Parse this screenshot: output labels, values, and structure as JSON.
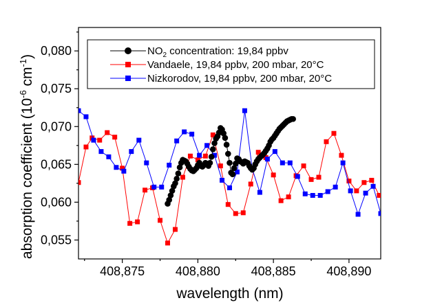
{
  "chart_data": {
    "type": "line",
    "xlabel": "wavelength (nm)",
    "ylabel_main": "absorption coefficient (10",
    "ylabel_exp1": "-6",
    "ylabel_mid": " cm",
    "ylabel_exp2": "-1",
    "ylabel_close": ")",
    "xlim": [
      408.8721,
      408.8921
    ],
    "ylim": [
      0.0525,
      0.0831
    ],
    "xticks": [
      {
        "value": 408.875,
        "label": "408,875"
      },
      {
        "value": 408.88,
        "label": "408,880"
      },
      {
        "value": 408.885,
        "label": "408,885"
      },
      {
        "value": 408.89,
        "label": "408,890"
      }
    ],
    "yticks": [
      {
        "value": 0.055,
        "label": "0,055"
      },
      {
        "value": 0.06,
        "label": "0,060"
      },
      {
        "value": 0.065,
        "label": "0,065"
      },
      {
        "value": 0.07,
        "label": "0,070"
      },
      {
        "value": 0.075,
        "label": "0,075"
      },
      {
        "value": 0.08,
        "label": "0,080"
      }
    ],
    "grid": false,
    "legend_position": "top-right",
    "series": [
      {
        "legend_pre": "NO",
        "legend_sub": "2",
        "legend_post": " concentration: 19,84 ppbv",
        "color": "#000000",
        "marker": "circle",
        "x": [
          408.878,
          408.8781,
          408.8782,
          408.8783,
          408.8784,
          408.8785,
          408.8786,
          408.8787,
          408.8788,
          408.8789,
          408.879,
          408.8791,
          408.8792,
          408.8793,
          408.8794,
          408.8795,
          408.8796,
          408.8797,
          408.8798,
          408.8799,
          408.88,
          408.8801,
          408.8802,
          408.8803,
          408.8804,
          408.8805,
          408.8806,
          408.8807,
          408.8808,
          408.8809,
          408.881,
          408.8811,
          408.8812,
          408.8813,
          408.8814,
          408.8815,
          408.8816,
          408.8817,
          408.8818,
          408.8819,
          408.882,
          408.8821,
          408.8822,
          408.8823,
          408.8824,
          408.8825,
          408.8826,
          408.8827,
          408.8828,
          408.8829,
          408.883,
          408.8831,
          408.8832,
          408.8833,
          408.8834,
          408.8835,
          408.8836,
          408.8837,
          408.8838,
          408.8839,
          408.884,
          408.8841,
          408.8842,
          408.8843,
          408.8844,
          408.8845,
          408.8846,
          408.8847,
          408.8848,
          408.8849,
          408.885,
          408.8851,
          408.8852,
          408.8853,
          408.8854,
          408.8855,
          408.8856,
          408.8857,
          408.8858,
          408.8859,
          408.886,
          408.8861,
          408.8862,
          408.8863
        ],
        "y": [
          0.0598,
          0.0603,
          0.0609,
          0.0615,
          0.0621,
          0.0625,
          0.0631,
          0.0638,
          0.0646,
          0.0652,
          0.0656,
          0.0655,
          0.0654,
          0.0651,
          0.0647,
          0.0644,
          0.0642,
          0.0641,
          0.0643,
          0.0645,
          0.0649,
          0.0652,
          0.0648,
          0.0647,
          0.0649,
          0.0652,
          0.065,
          0.0648,
          0.0652,
          0.066,
          0.067,
          0.0678,
          0.0684,
          0.0687,
          0.0692,
          0.0698,
          0.0696,
          0.0691,
          0.0685,
          0.0676,
          0.0664,
          0.0652,
          0.0639,
          0.0637,
          0.0645,
          0.0651,
          0.0658,
          0.0657,
          0.0654,
          0.0653,
          0.0651,
          0.0654,
          0.0653,
          0.0652,
          0.0648,
          0.0645,
          0.0643,
          0.0645,
          0.065,
          0.0654,
          0.0657,
          0.0659,
          0.0661,
          0.0663,
          0.0665,
          0.0668,
          0.0671,
          0.0675,
          0.068,
          0.0683,
          0.0685,
          0.0688,
          0.0691,
          0.0694,
          0.0697,
          0.0699,
          0.0701,
          0.0703,
          0.0705,
          0.0707,
          0.0708,
          0.0709,
          0.071,
          0.071
        ]
      },
      {
        "legend_text": "Vandaele, 19,84 ppbv, 200 mbar, 20°C",
        "color": "#ff0000",
        "marker": "square",
        "x": [
          408.8721,
          408.8726,
          408.873,
          408.8735,
          408.874,
          408.8745,
          408.875,
          408.8755,
          408.876,
          408.8765,
          408.877,
          408.8775,
          408.878,
          408.8785,
          408.879,
          408.8795,
          408.88,
          408.8805,
          408.881,
          408.8815,
          408.882,
          408.8825,
          408.883,
          408.8835,
          408.884,
          408.8845,
          408.885,
          408.8855,
          408.886,
          408.8865,
          408.887,
          408.8875,
          408.888,
          408.8885,
          408.889,
          408.8895,
          408.89,
          408.8905,
          408.891,
          408.8915,
          408.892
        ],
        "y": [
          0.0626,
          0.0673,
          0.0685,
          0.0682,
          0.0692,
          0.0686,
          0.0645,
          0.0572,
          0.0574,
          0.0616,
          0.0619,
          0.0576,
          0.0546,
          0.0564,
          0.0633,
          0.0661,
          0.0656,
          0.0661,
          0.0689,
          0.0648,
          0.0597,
          0.0585,
          0.0586,
          0.0624,
          0.0666,
          0.0659,
          0.0636,
          0.0602,
          0.0607,
          0.0635,
          0.0648,
          0.063,
          0.0633,
          0.068,
          0.0691,
          0.0662,
          0.0628,
          0.0615,
          0.0626,
          0.0629,
          0.0609
        ]
      },
      {
        "legend_text": "Nizkorodov, 19,84 ppbv, 200 mbar, 20°C",
        "color": "#0000ff",
        "marker": "square",
        "x": [
          408.8721,
          408.8726,
          408.8731,
          408.8736,
          408.8741,
          408.8746,
          408.8751,
          408.8756,
          408.8761,
          408.8766,
          408.8771,
          408.8776,
          408.8781,
          408.8786,
          408.8791,
          408.8796,
          408.8801,
          408.8806,
          408.8811,
          408.8816,
          408.8821,
          408.8826,
          408.8831,
          408.8836,
          408.8841,
          408.8846,
          408.8851,
          408.8856,
          408.8861,
          408.8866,
          408.8871,
          408.8876,
          408.8881,
          408.8886,
          408.8891,
          408.8896,
          408.8901,
          408.8906,
          408.8911,
          408.8916,
          408.8921
        ],
        "y": [
          0.0721,
          0.0713,
          0.0682,
          0.0667,
          0.066,
          0.0646,
          0.0641,
          0.0667,
          0.0682,
          0.0652,
          0.062,
          0.062,
          0.0649,
          0.0681,
          0.0693,
          0.069,
          0.0662,
          0.0675,
          0.0662,
          0.0629,
          0.0619,
          0.064,
          0.0721,
          0.0644,
          0.0613,
          0.0657,
          0.0667,
          0.0652,
          0.0652,
          0.0634,
          0.0611,
          0.0609,
          0.0609,
          0.0614,
          0.062,
          0.0652,
          0.0615,
          0.0584,
          0.0612,
          0.0621,
          0.0585
        ]
      }
    ]
  }
}
